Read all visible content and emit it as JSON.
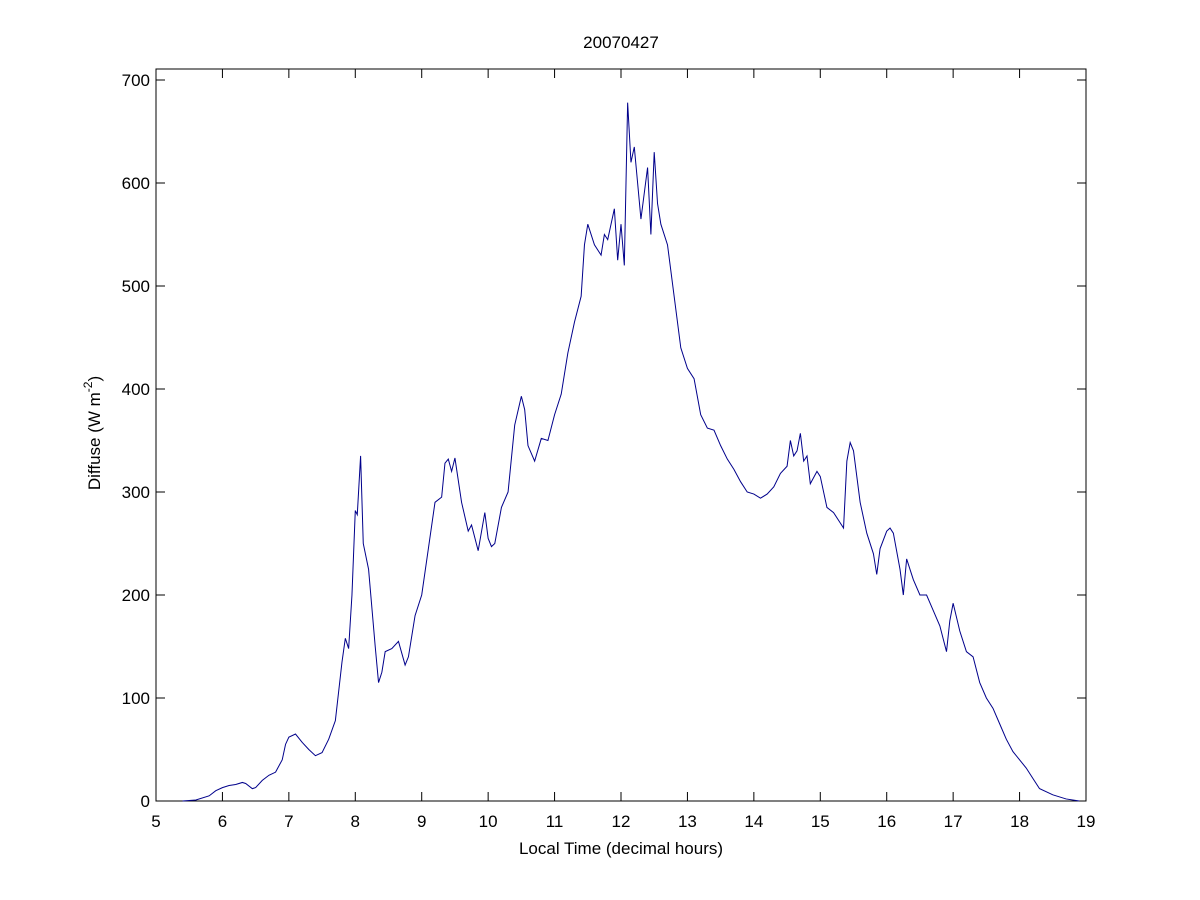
{
  "chart_data": {
    "type": "line",
    "title": "20070427",
    "xlabel": "Local Time (decimal hours)",
    "ylabel_parts": [
      "Diffuse (W m",
      "-2",
      ")"
    ],
    "xlim": [
      5,
      19
    ],
    "ylim": [
      0,
      700
    ],
    "xticks": [
      5,
      6,
      7,
      8,
      9,
      10,
      11,
      12,
      13,
      14,
      15,
      16,
      17,
      18,
      19
    ],
    "yticks": [
      0,
      100,
      200,
      300,
      400,
      500,
      600,
      700
    ],
    "color": "#00008b",
    "x": [
      5.4,
      5.6,
      5.8,
      5.9,
      6.0,
      6.1,
      6.2,
      6.3,
      6.35,
      6.45,
      6.5,
      6.6,
      6.7,
      6.8,
      6.9,
      6.95,
      7.0,
      7.1,
      7.2,
      7.3,
      7.4,
      7.5,
      7.6,
      7.7,
      7.8,
      7.85,
      7.9,
      7.95,
      8.0,
      8.03,
      8.08,
      8.12,
      8.2,
      8.3,
      8.35,
      8.4,
      8.45,
      8.55,
      8.65,
      8.75,
      8.8,
      8.9,
      9.0,
      9.1,
      9.2,
      9.3,
      9.35,
      9.4,
      9.45,
      9.5,
      9.6,
      9.7,
      9.75,
      9.85,
      9.95,
      10.0,
      10.05,
      10.1,
      10.2,
      10.3,
      10.4,
      10.5,
      10.55,
      10.6,
      10.7,
      10.8,
      10.9,
      11.0,
      11.1,
      11.2,
      11.3,
      11.4,
      11.45,
      11.5,
      11.6,
      11.7,
      11.75,
      11.8,
      11.9,
      11.95,
      12.0,
      12.05,
      12.1,
      12.15,
      12.2,
      12.25,
      12.3,
      12.35,
      12.4,
      12.45,
      12.5,
      12.55,
      12.6,
      12.7,
      12.8,
      12.9,
      13.0,
      13.1,
      13.2,
      13.3,
      13.4,
      13.5,
      13.6,
      13.7,
      13.8,
      13.9,
      14.0,
      14.1,
      14.2,
      14.3,
      14.4,
      14.5,
      14.55,
      14.6,
      14.65,
      14.7,
      14.75,
      14.8,
      14.85,
      14.95,
      15.0,
      15.1,
      15.2,
      15.3,
      15.35,
      15.4,
      15.45,
      15.5,
      15.6,
      15.7,
      15.8,
      15.85,
      15.9,
      16.0,
      16.05,
      16.1,
      16.2,
      16.25,
      16.3,
      16.4,
      16.5,
      16.6,
      16.7,
      16.8,
      16.9,
      16.95,
      17.0,
      17.1,
      17.2,
      17.3,
      17.4,
      17.5,
      17.6,
      17.7,
      17.8,
      17.9,
      18.0,
      18.1,
      18.2,
      18.3,
      18.5,
      18.7,
      18.9
    ],
    "values": [
      0,
      1,
      5,
      10,
      13,
      15,
      16,
      18,
      17,
      12,
      13,
      20,
      25,
      28,
      40,
      55,
      62,
      65,
      57,
      50,
      44,
      47,
      60,
      78,
      135,
      158,
      148,
      200,
      282,
      278,
      335,
      250,
      225,
      150,
      115,
      125,
      145,
      148,
      155,
      132,
      140,
      180,
      200,
      245,
      290,
      295,
      328,
      332,
      320,
      333,
      290,
      262,
      268,
      243,
      280,
      255,
      247,
      250,
      285,
      300,
      365,
      393,
      380,
      345,
      330,
      352,
      350,
      375,
      395,
      435,
      465,
      490,
      540,
      560,
      540,
      530,
      550,
      545,
      575,
      525,
      560,
      520,
      678,
      620,
      635,
      600,
      565,
      590,
      615,
      550,
      630,
      580,
      560,
      540,
      490,
      440,
      420,
      410,
      375,
      362,
      360,
      345,
      332,
      322,
      310,
      300,
      298,
      294,
      298,
      305,
      318,
      325,
      350,
      335,
      340,
      357,
      330,
      335,
      308,
      320,
      315,
      285,
      280,
      270,
      265,
      330,
      348,
      340,
      290,
      260,
      240,
      220,
      245,
      262,
      265,
      260,
      225,
      200,
      235,
      215,
      200,
      200,
      185,
      170,
      145,
      175,
      192,
      165,
      145,
      140,
      115,
      100,
      90,
      75,
      60,
      48,
      40,
      32,
      22,
      12,
      6,
      2,
      0
    ]
  }
}
